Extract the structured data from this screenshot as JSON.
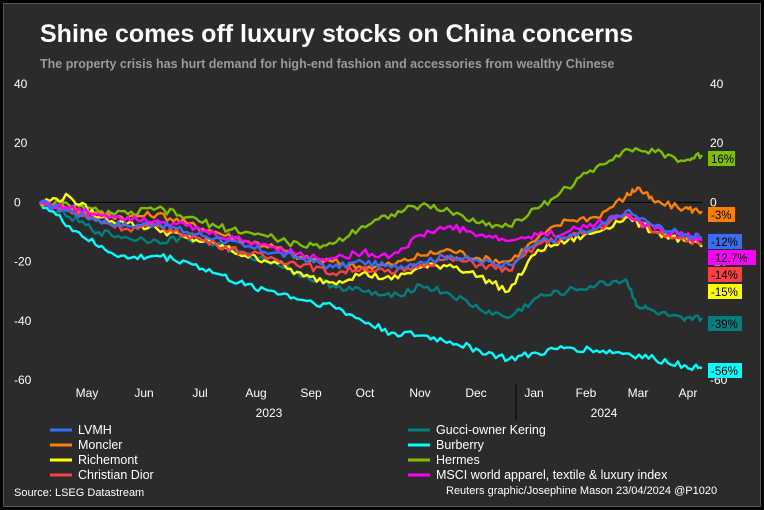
{
  "title": "Shine comes off luxury stocks on China concerns",
  "subtitle": "The property crisis has hurt demand for high-end fashion and accessories from wealthy Chinese",
  "source": "Source: LSEG Datastream",
  "credit": "Reuters graphic/Josephine Mason 23/04/2024 @P1020",
  "colors": {
    "background": "#2b2b2b",
    "axis_text": "#ffffff",
    "zero_line": "#000000"
  },
  "chart_data": {
    "type": "line",
    "title": "Shine comes off luxury stocks on China concerns",
    "subtitle": "The property crisis has hurt demand for high-end fashion and accessories from wealthy Chinese",
    "xlabel": "",
    "ylabel": "",
    "ylim": [
      -60,
      40
    ],
    "yticks": [
      40,
      20,
      0,
      -20,
      -40,
      -60
    ],
    "yticks_right": [
      40,
      20,
      0,
      -20,
      -40,
      -60
    ],
    "grid": false,
    "x_months": [
      "May",
      "Jun",
      "Jul",
      "Aug",
      "Sep",
      "Oct",
      "Nov",
      "Dec",
      "Jan",
      "Feb",
      "Mar",
      "Apr"
    ],
    "x_years": [
      "2023",
      "2024"
    ],
    "x_range": [
      "2023-04-20",
      "2024-04-22"
    ],
    "legend_position": "bottom",
    "series": [
      {
        "name": "LVMH",
        "color": "#3b6cf5",
        "end_label": "-12%",
        "points": [
          [
            0,
            0
          ],
          [
            0.5,
            -3
          ],
          [
            1,
            -6
          ],
          [
            1.5,
            -8
          ],
          [
            2,
            -7
          ],
          [
            2.5,
            -10
          ],
          [
            3,
            -12
          ],
          [
            3.5,
            -15
          ],
          [
            4,
            -17
          ],
          [
            4.5,
            -19
          ],
          [
            5,
            -22
          ],
          [
            5.5,
            -20
          ],
          [
            6,
            -22
          ],
          [
            6.5,
            -20
          ],
          [
            7,
            -18
          ],
          [
            7.5,
            -20
          ],
          [
            8,
            -21
          ],
          [
            8.5,
            -13
          ],
          [
            9,
            -12
          ],
          [
            9.5,
            -9
          ],
          [
            10,
            -3
          ],
          [
            10.5,
            -8
          ],
          [
            11,
            -11
          ],
          [
            11.3,
            -12
          ]
        ]
      },
      {
        "name": "Moncler",
        "color": "#ff7f00",
        "end_label": "-3%",
        "points": [
          [
            0,
            0
          ],
          [
            0.5,
            -2
          ],
          [
            1,
            -4
          ],
          [
            1.5,
            -5
          ],
          [
            2,
            -4
          ],
          [
            2.5,
            -7
          ],
          [
            3,
            -10
          ],
          [
            3.5,
            -13
          ],
          [
            4,
            -15
          ],
          [
            4.5,
            -19
          ],
          [
            5,
            -20
          ],
          [
            5.5,
            -22
          ],
          [
            6,
            -21
          ],
          [
            6.5,
            -18
          ],
          [
            7,
            -16
          ],
          [
            7.5,
            -19
          ],
          [
            8,
            -20
          ],
          [
            8.5,
            -12
          ],
          [
            9,
            -6
          ],
          [
            9.5,
            -5
          ],
          [
            10,
            2
          ],
          [
            10.2,
            5
          ],
          [
            10.5,
            0
          ],
          [
            11,
            -2
          ],
          [
            11.3,
            -3
          ]
        ]
      },
      {
        "name": "Richemont",
        "color": "#ffff00",
        "end_label": "-15%",
        "points": [
          [
            0,
            0
          ],
          [
            0.5,
            2
          ],
          [
            1,
            -5
          ],
          [
            1.5,
            -7
          ],
          [
            2,
            -9
          ],
          [
            2.5,
            -12
          ],
          [
            3,
            -14
          ],
          [
            3.5,
            -18
          ],
          [
            4,
            -20
          ],
          [
            4.5,
            -25
          ],
          [
            5,
            -27
          ],
          [
            5.5,
            -24
          ],
          [
            6,
            -26
          ],
          [
            6.5,
            -22
          ],
          [
            7,
            -21
          ],
          [
            7.5,
            -25
          ],
          [
            8,
            -30
          ],
          [
            8.5,
            -16
          ],
          [
            9,
            -13
          ],
          [
            9.5,
            -10
          ],
          [
            10,
            -5
          ],
          [
            10.5,
            -10
          ],
          [
            11,
            -13
          ],
          [
            11.3,
            -15
          ]
        ]
      },
      {
        "name": "Christian Dior",
        "color": "#ff4040",
        "end_label": "-14%",
        "points": [
          [
            0,
            0
          ],
          [
            0.5,
            -3
          ],
          [
            1,
            -6
          ],
          [
            1.5,
            -9
          ],
          [
            2,
            -8
          ],
          [
            2.5,
            -11
          ],
          [
            3,
            -14
          ],
          [
            3.5,
            -17
          ],
          [
            4,
            -19
          ],
          [
            4.5,
            -21
          ],
          [
            5,
            -24
          ],
          [
            5.5,
            -22
          ],
          [
            6,
            -24
          ],
          [
            6.5,
            -21
          ],
          [
            7,
            -19
          ],
          [
            7.5,
            -21
          ],
          [
            8,
            -23
          ],
          [
            8.5,
            -14
          ],
          [
            9,
            -12
          ],
          [
            9.5,
            -9
          ],
          [
            10,
            -4
          ],
          [
            10.5,
            -10
          ],
          [
            11,
            -12
          ],
          [
            11.3,
            -14
          ]
        ]
      },
      {
        "name": "Gucci-owner Kering",
        "color": "#008080",
        "end_label": "-39%",
        "points": [
          [
            0,
            0
          ],
          [
            0.5,
            -5
          ],
          [
            1,
            -10
          ],
          [
            1.5,
            -12
          ],
          [
            2,
            -13
          ],
          [
            2.5,
            -12
          ],
          [
            3,
            -14
          ],
          [
            3.5,
            -18
          ],
          [
            4,
            -20
          ],
          [
            4.5,
            -25
          ],
          [
            5,
            -28
          ],
          [
            5.5,
            -30
          ],
          [
            6,
            -32
          ],
          [
            6.5,
            -28
          ],
          [
            7,
            -31
          ],
          [
            7.5,
            -36
          ],
          [
            8,
            -39
          ],
          [
            8.5,
            -32
          ],
          [
            9,
            -30
          ],
          [
            9.5,
            -28
          ],
          [
            10,
            -26
          ],
          [
            10.2,
            -35
          ],
          [
            10.5,
            -37
          ],
          [
            11,
            -40
          ],
          [
            11.3,
            -39
          ]
        ]
      },
      {
        "name": "Burberry",
        "color": "#00ffff",
        "end_label": "-56%",
        "points": [
          [
            0,
            0
          ],
          [
            0.5,
            -8
          ],
          [
            1,
            -15
          ],
          [
            1.5,
            -19
          ],
          [
            2,
            -18
          ],
          [
            2.5,
            -20
          ],
          [
            3,
            -24
          ],
          [
            3.5,
            -28
          ],
          [
            4,
            -30
          ],
          [
            4.5,
            -33
          ],
          [
            5,
            -35
          ],
          [
            5.5,
            -40
          ],
          [
            6,
            -44
          ],
          [
            6.5,
            -45
          ],
          [
            7,
            -47
          ],
          [
            7.5,
            -50
          ],
          [
            8,
            -53
          ],
          [
            8.5,
            -51
          ],
          [
            9,
            -49
          ],
          [
            9.5,
            -50
          ],
          [
            10,
            -51
          ],
          [
            10.5,
            -53
          ],
          [
            11,
            -55
          ],
          [
            11.3,
            -56
          ]
        ]
      },
      {
        "name": "Hermes",
        "color": "#7fbf00",
        "end_label": "16%",
        "points": [
          [
            0,
            0
          ],
          [
            0.5,
            -1
          ],
          [
            1,
            -3
          ],
          [
            1.5,
            -4
          ],
          [
            2,
            -2
          ],
          [
            2.5,
            -5
          ],
          [
            3,
            -8
          ],
          [
            3.5,
            -10
          ],
          [
            4,
            -12
          ],
          [
            4.5,
            -15
          ],
          [
            5,
            -14
          ],
          [
            5.5,
            -8
          ],
          [
            6,
            -4
          ],
          [
            6.5,
            -1
          ],
          [
            7,
            -3
          ],
          [
            7.5,
            -7
          ],
          [
            8,
            -8
          ],
          [
            8.5,
            -2
          ],
          [
            9,
            5
          ],
          [
            9.5,
            12
          ],
          [
            10,
            18
          ],
          [
            10.5,
            17
          ],
          [
            11,
            14
          ],
          [
            11.3,
            16
          ]
        ]
      },
      {
        "name": "MSCI world apparel, textile & luxury index",
        "color": "#ff00ff",
        "end_label": "-12.7%",
        "points": [
          [
            0,
            0
          ],
          [
            0.5,
            -2
          ],
          [
            1,
            -4
          ],
          [
            1.5,
            -5
          ],
          [
            2,
            -6
          ],
          [
            2.5,
            -8
          ],
          [
            3,
            -11
          ],
          [
            3.5,
            -13
          ],
          [
            4,
            -15
          ],
          [
            4.5,
            -18
          ],
          [
            5,
            -19
          ],
          [
            5.5,
            -17
          ],
          [
            6,
            -18
          ],
          [
            6.5,
            -11
          ],
          [
            7,
            -8
          ],
          [
            7.5,
            -11
          ],
          [
            8,
            -13
          ],
          [
            8.5,
            -11
          ],
          [
            9,
            -10
          ],
          [
            9.5,
            -7
          ],
          [
            10,
            -4
          ],
          [
            10.5,
            -9
          ],
          [
            11,
            -11
          ],
          [
            11.3,
            -13
          ]
        ]
      }
    ]
  }
}
